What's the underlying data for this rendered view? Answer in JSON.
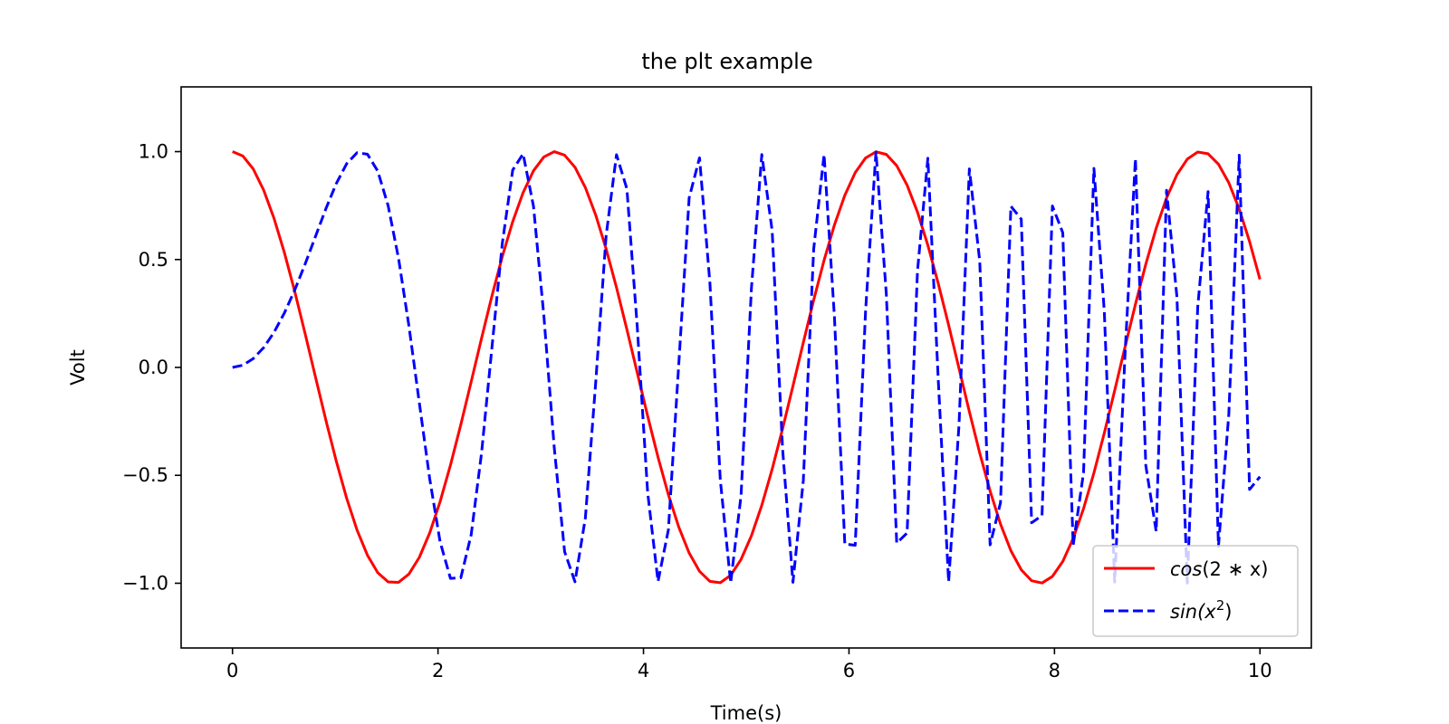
{
  "chart_data": {
    "type": "line",
    "title": "the plt example",
    "xlabel": "Time(s)",
    "ylabel": "Volt",
    "xlim": [
      -0.5,
      10.5
    ],
    "ylim": [
      -1.3,
      1.3
    ],
    "xticks": [
      0,
      2,
      4,
      6,
      8,
      10
    ],
    "xtick_labels": [
      "0",
      "2",
      "4",
      "6",
      "8",
      "10"
    ],
    "yticks": [
      -1.0,
      -0.5,
      0.0,
      0.5,
      1.0
    ],
    "ytick_labels": [
      "−1.0",
      "−0.5",
      "0.0",
      "0.5",
      "1.0"
    ],
    "grid": false,
    "legend_position": "lower-right",
    "x_domain": [
      0,
      10
    ],
    "num_points": 100,
    "series": [
      {
        "name": "cos(2*x)",
        "legend_base": "cos",
        "legend_arg": "(2 ∗ x)",
        "function": "cos(2*x)",
        "color": "#ff0000",
        "line_style": "solid"
      },
      {
        "name": "sin(x^2)",
        "legend_base": "sin",
        "legend_arg_prefix": "(x",
        "legend_arg_sup": "2",
        "legend_arg_suffix": ")",
        "function": "sin(x^2)",
        "color": "#0000ff",
        "line_style": "dashed"
      }
    ]
  }
}
